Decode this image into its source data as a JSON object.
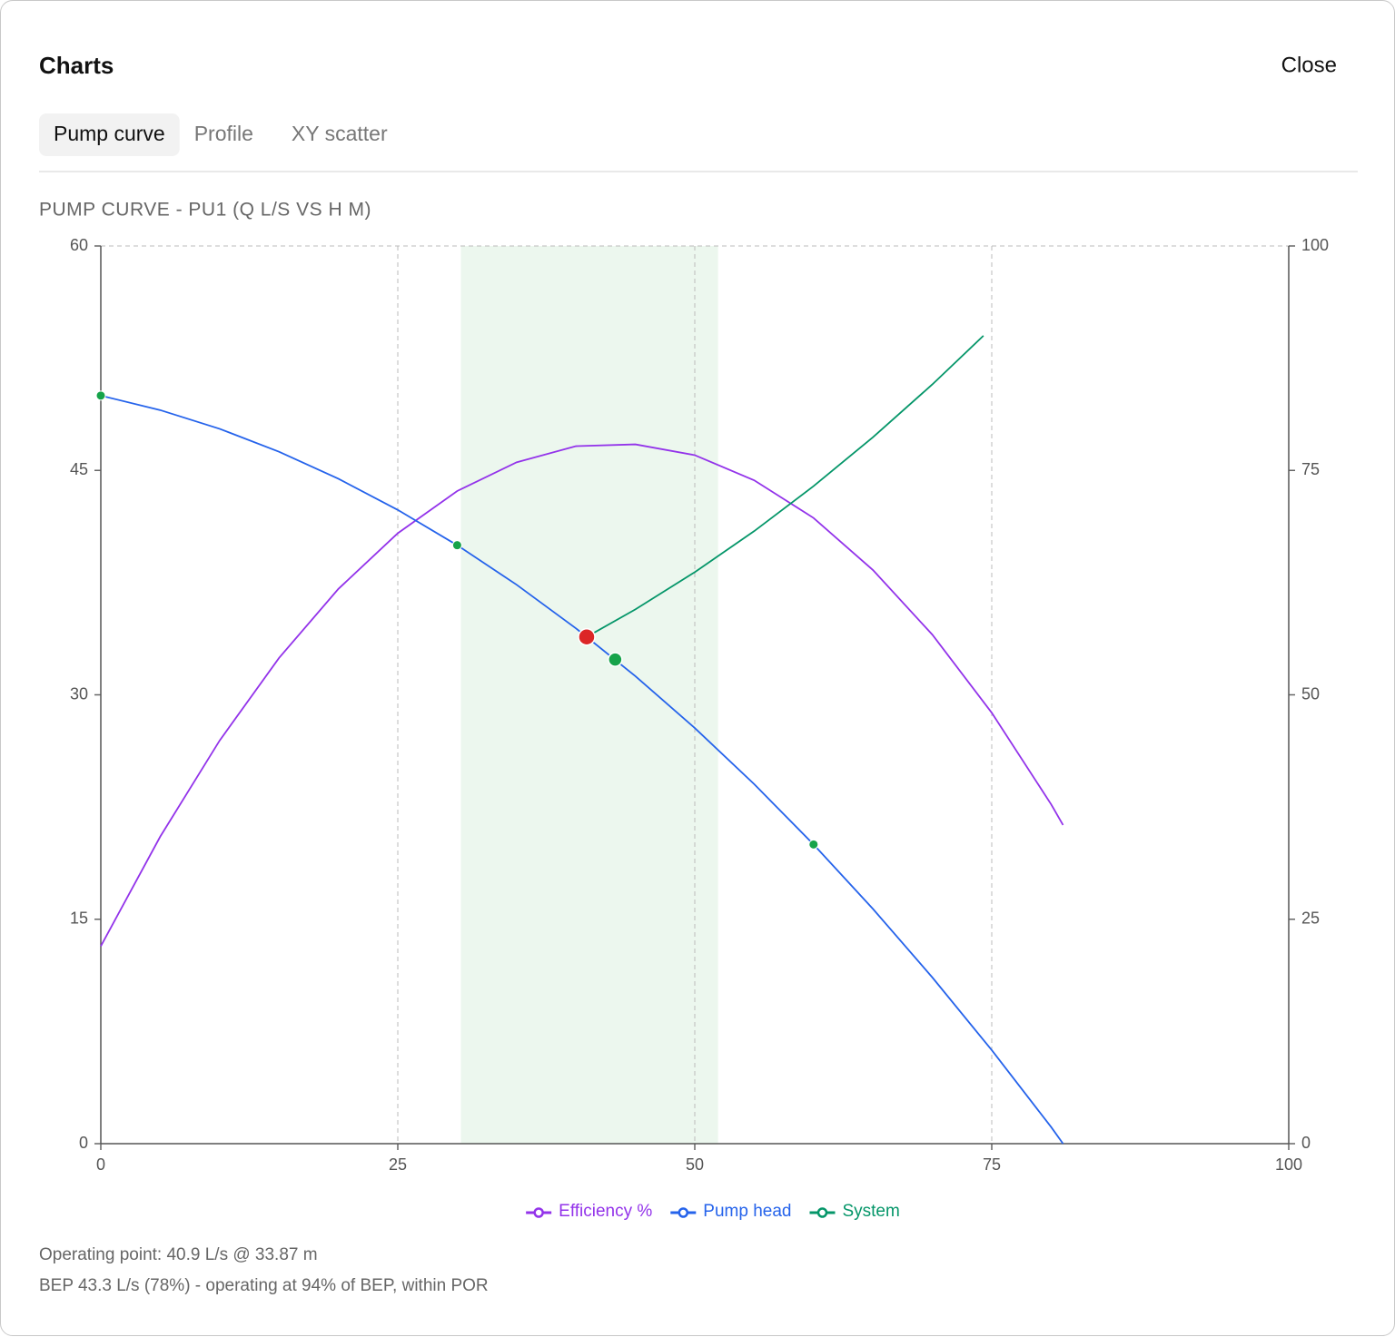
{
  "header": {
    "title": "Charts",
    "close": "Close"
  },
  "tabs": [
    {
      "label": "Pump curve",
      "active": true
    },
    {
      "label": "Profile",
      "active": false
    },
    {
      "label": "XY scatter",
      "active": false
    }
  ],
  "chart_data": {
    "type": "line",
    "title": "PUMP CURVE - PU1 (Q L/S VS H M)",
    "xlim": [
      0,
      100
    ],
    "xticks": [
      0,
      25,
      50,
      75,
      100
    ],
    "ylim": [
      0,
      60
    ],
    "yticks": [
      0,
      15,
      30,
      45,
      60
    ],
    "y2lim": [
      0,
      100
    ],
    "y2ticks": [
      0,
      25,
      50,
      75,
      100
    ],
    "grid": true,
    "por_band": [
      30.31,
      51.96
    ],
    "band_color": "#ecf7ee",
    "series": [
      {
        "name": "Efficiency %",
        "color": "#9333ea",
        "axis": "y2",
        "x": [
          0,
          5,
          10,
          15,
          20,
          25,
          30,
          35,
          40,
          45,
          50,
          55,
          60,
          65,
          70,
          75,
          80,
          81
        ],
        "values": [
          22.0,
          34.2,
          44.9,
          54.1,
          61.8,
          68.0,
          72.7,
          75.9,
          77.7,
          77.9,
          76.7,
          73.9,
          69.7,
          63.9,
          56.7,
          48.0,
          37.8,
          35.5
        ]
      },
      {
        "name": "Pump head",
        "color": "#2563eb",
        "x": [
          0,
          5,
          10,
          15,
          20,
          25,
          30,
          35,
          40,
          45,
          50,
          55,
          60,
          65,
          70,
          75,
          80,
          81
        ],
        "values": [
          50,
          49.03,
          47.78,
          46.25,
          44.44,
          42.36,
          40,
          37.36,
          34.44,
          31.25,
          27.78,
          24.03,
          20,
          15.69,
          11.11,
          6.25,
          1.11,
          0
        ]
      },
      {
        "name": "System",
        "color": "#059669",
        "x": [
          40.9,
          45,
          50,
          55,
          60,
          65,
          70,
          74.3
        ],
        "values": [
          33.87,
          35.71,
          38.2,
          40.94,
          43.95,
          47.22,
          50.75,
          54.0
        ]
      }
    ],
    "markers": {
      "color": "#16a34a",
      "x": [
        0,
        30,
        60
      ],
      "values": [
        50,
        40,
        20
      ]
    },
    "operating_point": {
      "color": "#dc2626",
      "x": 40.9,
      "y": 33.87
    },
    "bep_point": {
      "color": "#16a34a",
      "x": 43.3,
      "y": 32.36
    }
  },
  "notes": [
    "Operating point: 40.9 L/s @ 33.87 m",
    "BEP 43.3 L/s (78%) - operating at 94% of BEP, within POR"
  ]
}
